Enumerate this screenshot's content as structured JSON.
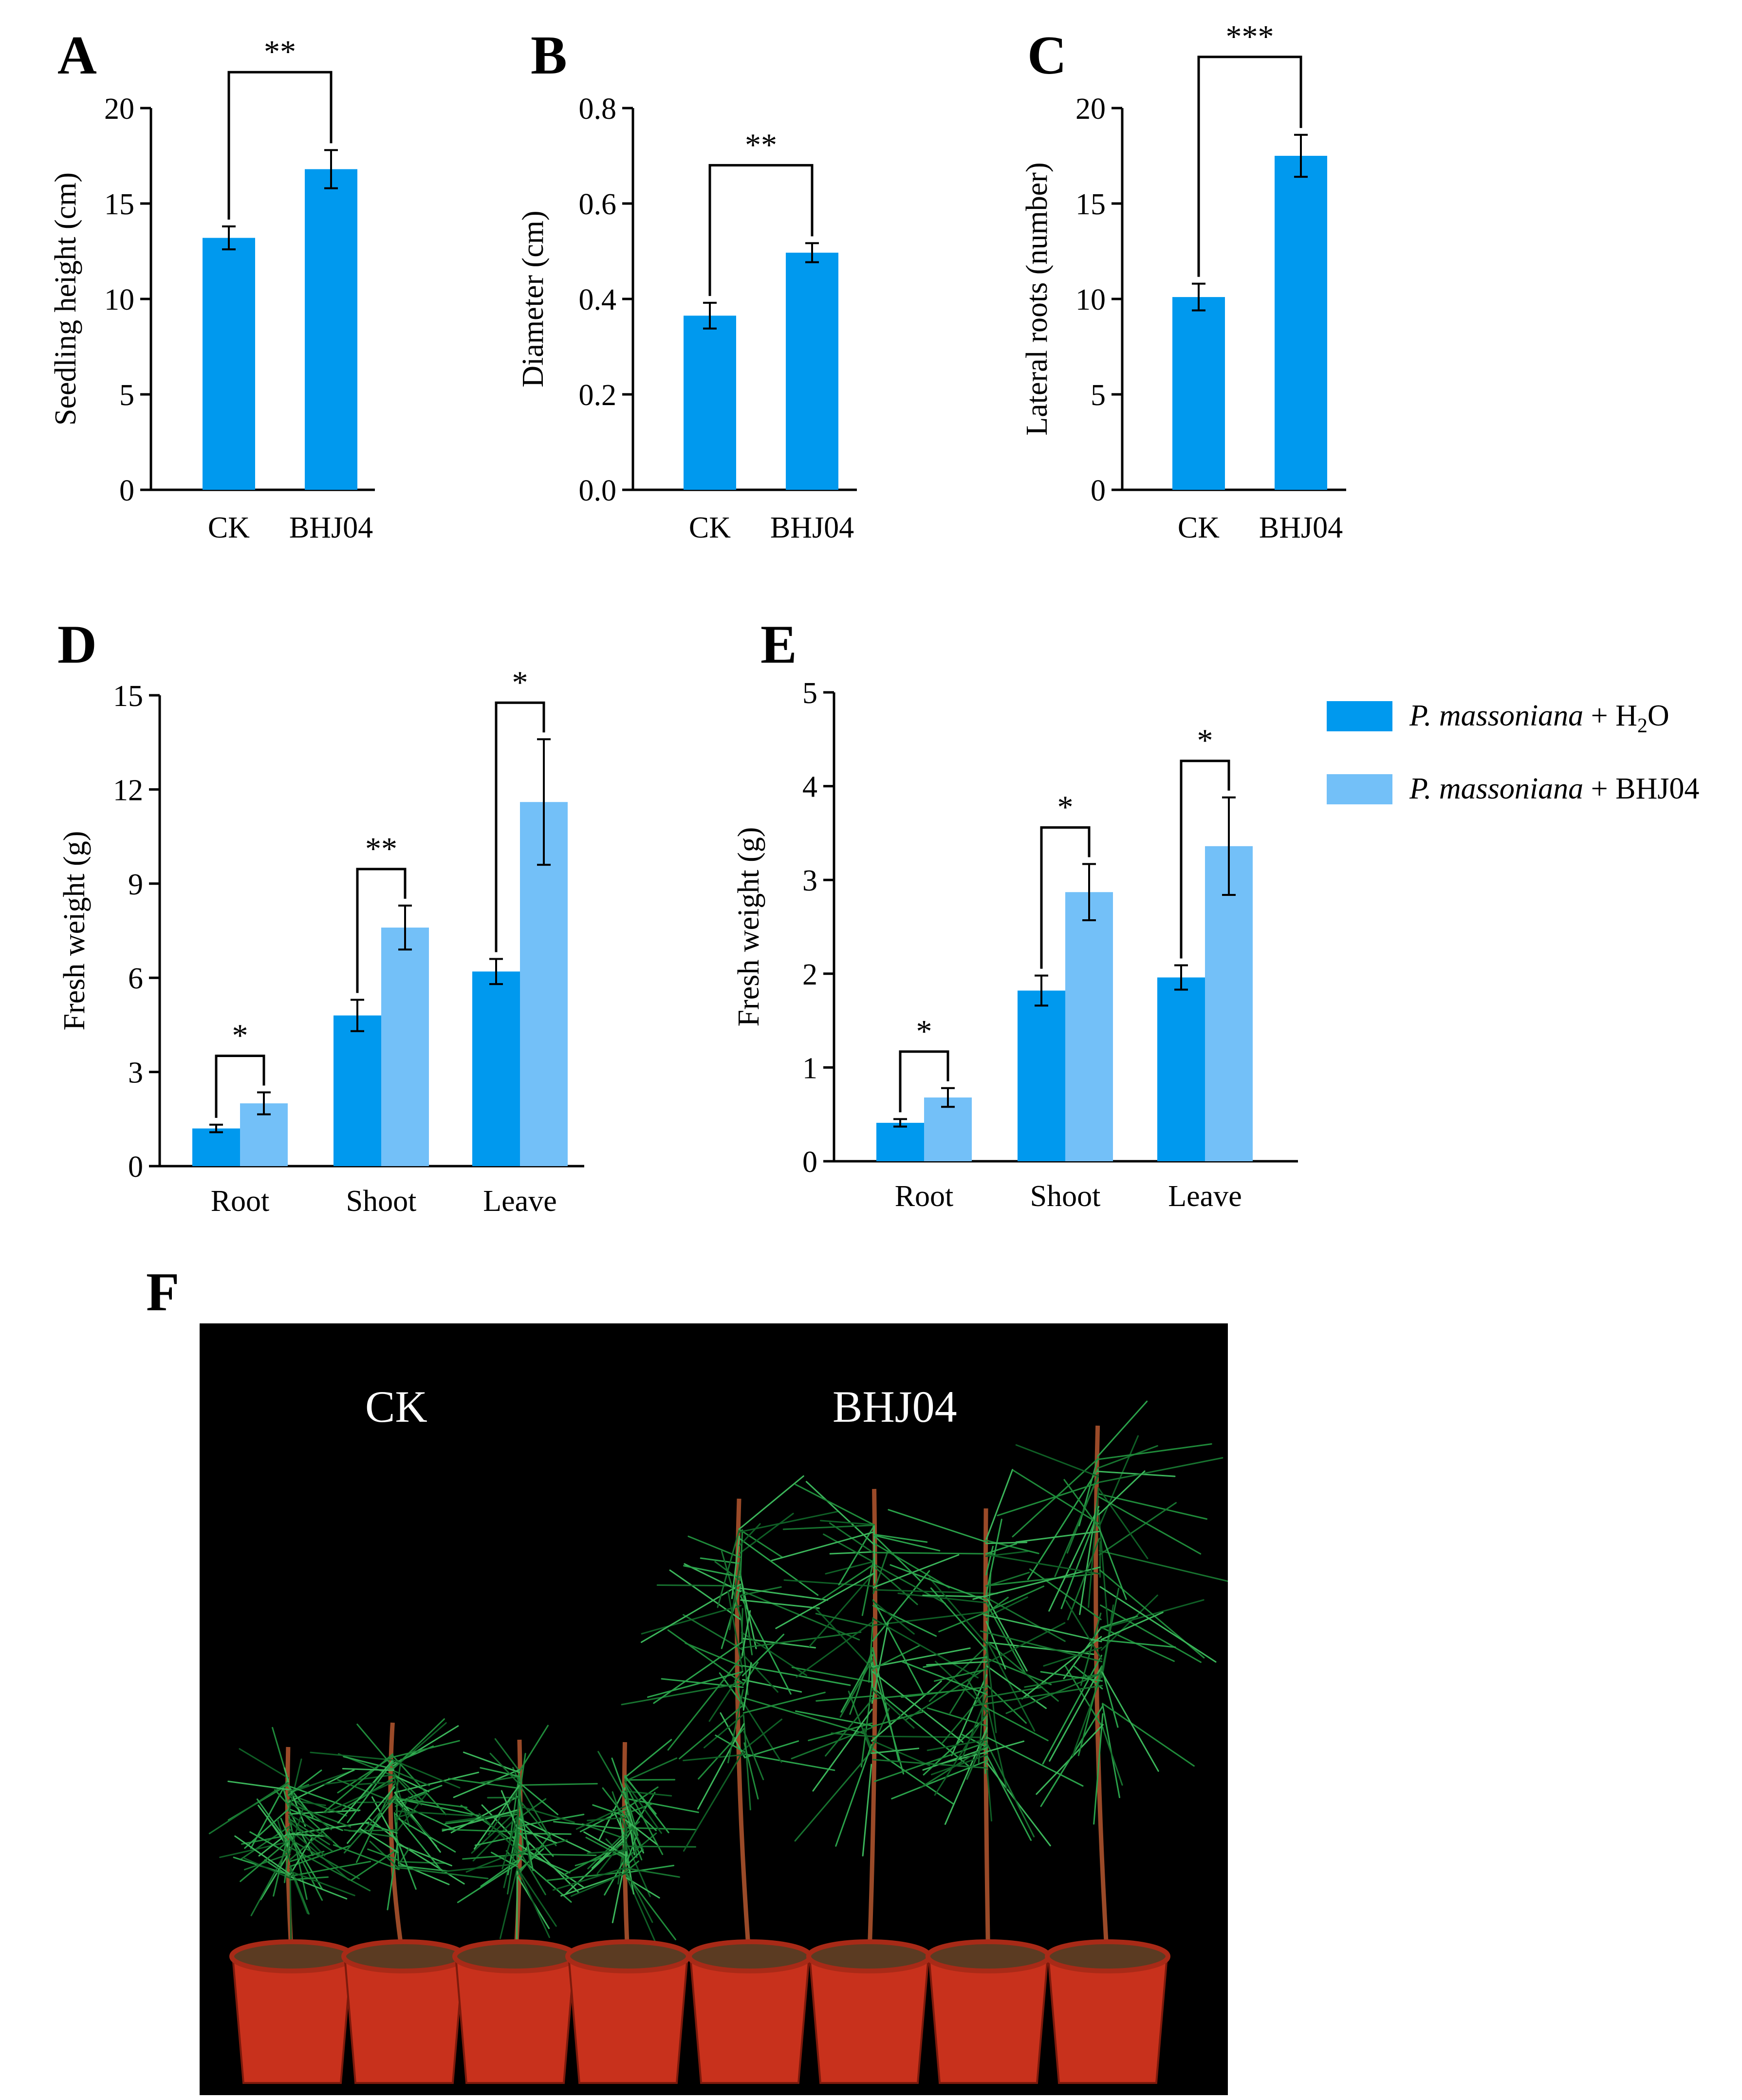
{
  "panels": {
    "A": "A",
    "B": "B",
    "C": "C",
    "D": "D",
    "E": "E",
    "F": "F"
  },
  "colors": {
    "primary": "#0099ee",
    "secondary": "#73c0f8",
    "axis": "#000000",
    "background": "#000000"
  },
  "chart_data": [
    {
      "id": "A",
      "type": "bar",
      "categories": [
        "CK",
        "BHJ04"
      ],
      "values": [
        13.2,
        16.8
      ],
      "errors": [
        0.6,
        1.0
      ],
      "xlabel": "",
      "ylabel": "Seedling height (cm)",
      "ylim": [
        0,
        20
      ],
      "yticks": [
        "0",
        "5",
        "10",
        "15",
        "20"
      ],
      "significance": [
        {
          "pair": [
            0,
            1
          ],
          "label": "**"
        }
      ]
    },
    {
      "id": "B",
      "type": "bar",
      "categories": [
        "CK",
        "BHJ04"
      ],
      "values": [
        0.365,
        0.497
      ],
      "errors": [
        0.027,
        0.02
      ],
      "xlabel": "",
      "ylabel": "Diameter (cm)",
      "ylim": [
        0,
        0.8
      ],
      "yticks": [
        "0.0",
        "0.2",
        "0.4",
        "0.6",
        "0.8"
      ],
      "significance": [
        {
          "pair": [
            0,
            1
          ],
          "label": "**"
        }
      ]
    },
    {
      "id": "C",
      "type": "bar",
      "categories": [
        "CK",
        "BHJ04"
      ],
      "values": [
        10.1,
        17.5
      ],
      "errors": [
        0.7,
        1.1
      ],
      "xlabel": "",
      "ylabel": "Lateral roots (number)",
      "ylim": [
        0,
        20
      ],
      "yticks": [
        "0",
        "5",
        "10",
        "15",
        "20"
      ],
      "significance": [
        {
          "pair": [
            0,
            1
          ],
          "label": "***"
        }
      ]
    },
    {
      "id": "D",
      "type": "bar",
      "categories": [
        "Root",
        "Shoot",
        "Leave"
      ],
      "series": [
        {
          "name": "P. massoniana + H2O",
          "values": [
            1.2,
            4.8,
            6.2
          ],
          "errors": [
            0.12,
            0.5,
            0.4
          ]
        },
        {
          "name": "P. massoniana + BHJ04",
          "values": [
            2.0,
            7.6,
            11.6
          ],
          "errors": [
            0.35,
            0.7,
            2.0
          ]
        }
      ],
      "xlabel": "",
      "ylabel": "Fresh weight (g)",
      "ylim": [
        0,
        15
      ],
      "yticks": [
        "0",
        "3",
        "6",
        "9",
        "12",
        "15"
      ],
      "significance": [
        "*",
        "**",
        "*"
      ]
    },
    {
      "id": "E",
      "type": "bar",
      "categories": [
        "Root",
        "Shoot",
        "Leave"
      ],
      "series": [
        {
          "name": "P. massoniana + H2O",
          "values": [
            0.41,
            1.82,
            1.96
          ],
          "errors": [
            0.04,
            0.16,
            0.13
          ]
        },
        {
          "name": "P. massoniana + BHJ04",
          "values": [
            0.68,
            2.87,
            3.36
          ],
          "errors": [
            0.1,
            0.3,
            0.52
          ]
        }
      ],
      "xlabel": "",
      "ylabel": "Fresh weight (g)",
      "ylim": [
        0,
        5
      ],
      "yticks": [
        "0",
        "1",
        "2",
        "3",
        "4",
        "5"
      ],
      "significance": [
        "*",
        "*",
        "*"
      ]
    }
  ],
  "legend": [
    {
      "italic": "P. massoniana",
      "rest": " + H",
      "sub": "2",
      "tail": "O"
    },
    {
      "italic": "P. massoniana",
      "rest": " + BHJ04",
      "sub": "",
      "tail": ""
    }
  ],
  "photo": {
    "label_left": "CK",
    "label_right": "BHJ04"
  }
}
